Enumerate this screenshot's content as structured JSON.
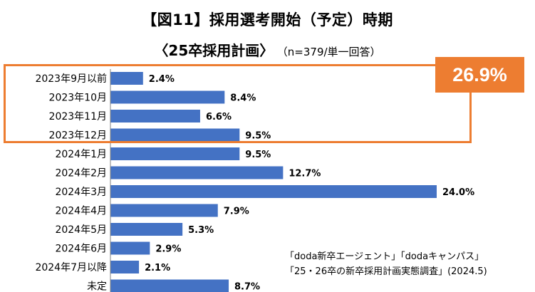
{
  "title": "【図11】採用選考開始（予定）時期",
  "subtitle": "〈25卒採用計画〉",
  "note": "（n=379/単一回答）",
  "highlight": {
    "label": "26.9%",
    "color": "#ED7D31"
  },
  "source": {
    "line1": "「doda新卒エージェント」「dodaキャンパス」",
    "line2": "「25・26卒の新卒採用計画実態調査」(2024.5)"
  },
  "colors": {
    "bar": "#4472C4",
    "accent": "#ED7D31"
  },
  "chart_data": {
    "type": "bar",
    "orientation": "horizontal",
    "categories": [
      "2023年9月以前",
      "2023年10月",
      "2023年11月",
      "2023年12月",
      "2024年1月",
      "2024年2月",
      "2024年3月",
      "2024年4月",
      "2024年5月",
      "2024年6月",
      "2024年7月以降",
      "未定"
    ],
    "values": [
      2.4,
      8.4,
      6.6,
      9.5,
      9.5,
      12.7,
      24.0,
      7.9,
      5.3,
      2.9,
      2.1,
      8.7
    ],
    "value_labels": [
      "2.4%",
      "8.4%",
      "6.6%",
      "9.5%",
      "9.5%",
      "12.7%",
      "24.0%",
      "7.9%",
      "5.3%",
      "2.9%",
      "2.1%",
      "8.7%"
    ],
    "title": "",
    "xlabel": "",
    "ylabel": "",
    "xlim": [
      0,
      24.0
    ],
    "grid": false,
    "legend": "none"
  }
}
